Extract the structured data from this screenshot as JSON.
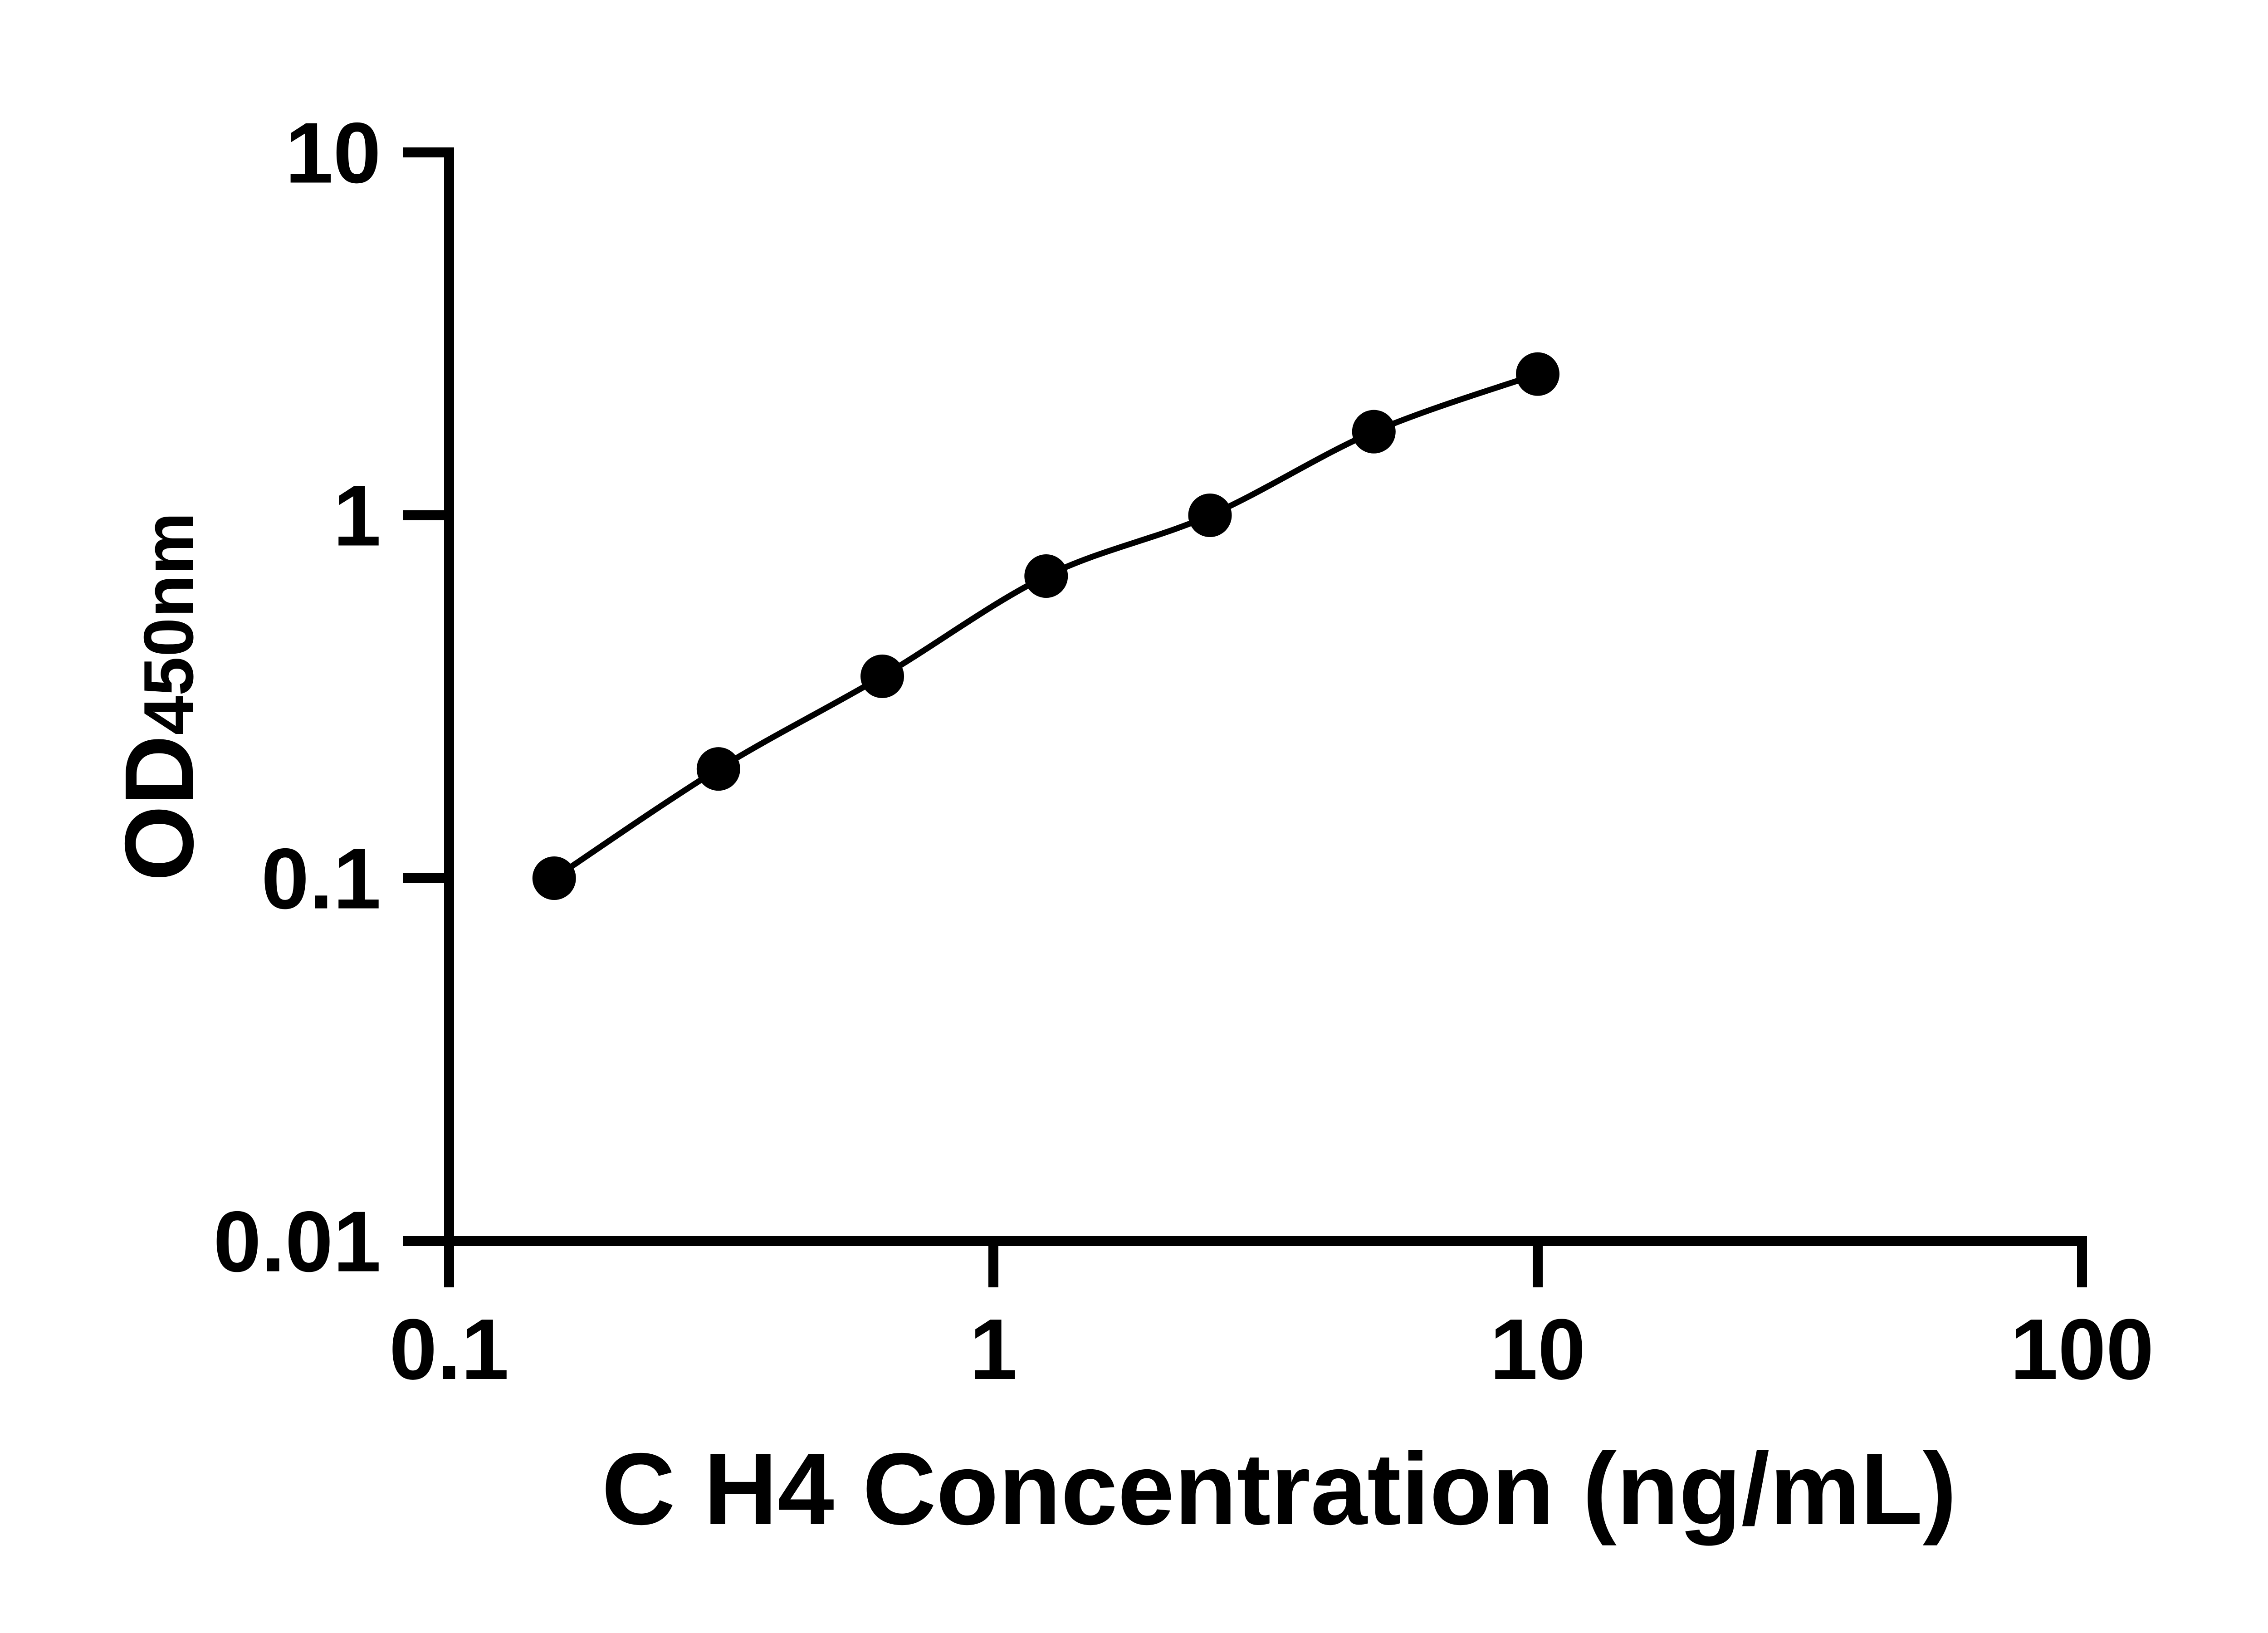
{
  "figure": {
    "background": "#ffffff",
    "ink_color": "#000000"
  },
  "chart_data": {
    "type": "line",
    "subtype": "scatter-line-log-log",
    "title": "",
    "xlabel": "C H4 Concentration (ng/mL)",
    "ylabel_main": "OD",
    "ylabel_sub": "450nm",
    "x_scale": "log",
    "y_scale": "log",
    "xlim": [
      0.1,
      100
    ],
    "ylim": [
      0.01,
      10
    ],
    "grid": false,
    "legend": "none",
    "x_ticks": [
      {
        "value": 0.1,
        "label": "0.1"
      },
      {
        "value": 1,
        "label": "1"
      },
      {
        "value": 10,
        "label": "10"
      },
      {
        "value": 100,
        "label": "100"
      }
    ],
    "y_ticks": [
      {
        "value": 10,
        "label": "10"
      },
      {
        "value": 1,
        "label": "1"
      },
      {
        "value": 0.1,
        "label": "0.1"
      },
      {
        "value": 0.01,
        "label": "0.01"
      }
    ],
    "series": [
      {
        "marker": "circle",
        "marker_color": "#000000",
        "line_color": "#000000",
        "points": [
          {
            "x": 0.156,
            "y": 0.1
          },
          {
            "x": 0.3125,
            "y": 0.2
          },
          {
            "x": 0.625,
            "y": 0.36
          },
          {
            "x": 1.25,
            "y": 0.68
          },
          {
            "x": 2.5,
            "y": 1.0
          },
          {
            "x": 5,
            "y": 1.7
          },
          {
            "x": 10,
            "y": 2.45
          }
        ]
      }
    ]
  }
}
